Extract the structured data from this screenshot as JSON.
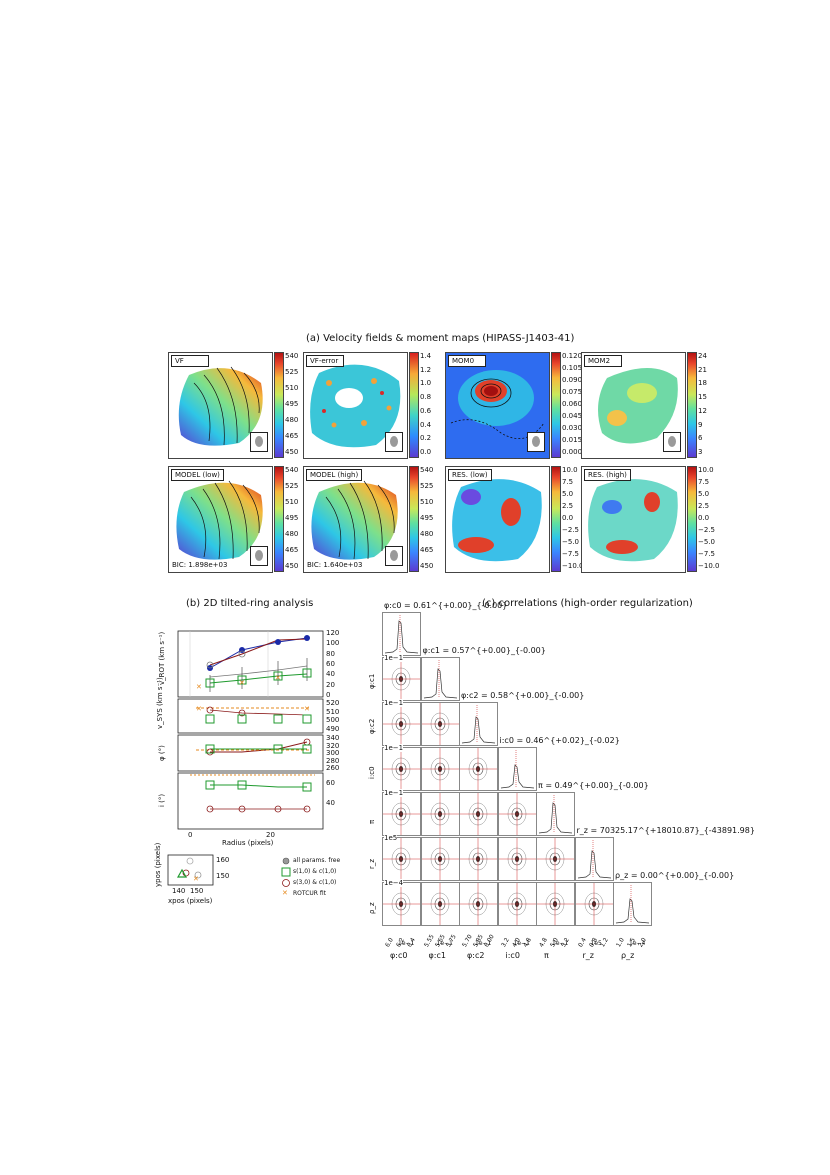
{
  "titles": {
    "a": "(a) Velocity fields & moment maps (HIPASS-J1403-41)",
    "b": "(b) 2D tilted-ring analysis",
    "c": "(c) correlations (high-order regularization)"
  },
  "maps_row1": [
    {
      "label": "VF",
      "ticks": [
        "540",
        "525",
        "510",
        "495",
        "480",
        "465",
        "450"
      ],
      "kind": "jet"
    },
    {
      "label": "VF-error",
      "ticks": [
        "1.4",
        "1.2",
        "1.0",
        "0.8",
        "0.6",
        "0.4",
        "0.2",
        "0.0"
      ],
      "kind": "err"
    },
    {
      "label": "MOM0",
      "ticks": [
        "0.120",
        "0.105",
        "0.090",
        "0.075",
        "0.060",
        "0.045",
        "0.030",
        "0.015",
        "0.000"
      ],
      "kind": "jet"
    },
    {
      "label": "MOM2",
      "ticks": [
        "24",
        "21",
        "18",
        "15",
        "12",
        "9",
        "6",
        "3"
      ],
      "kind": "jet"
    }
  ],
  "maps_row2": [
    {
      "label": "MODEL (low)",
      "bic": "BIC: 1.898e+03",
      "ticks": [
        "540",
        "525",
        "510",
        "495",
        "480",
        "465",
        "450"
      ],
      "kind": "jet"
    },
    {
      "label": "MODEL (high)",
      "bic": "BIC: 1.640e+03",
      "ticks": [
        "540",
        "525",
        "510",
        "495",
        "480",
        "465",
        "450"
      ],
      "kind": "jet"
    },
    {
      "label": "RES. (low)",
      "ticks": [
        "10.0",
        "7.5",
        "5.0",
        "2.5",
        "0.0",
        "−2.5",
        "−5.0",
        "−7.5",
        "−10.0"
      ],
      "kind": "jet"
    },
    {
      "label": "RES. (high)",
      "ticks": [
        "10.0",
        "7.5",
        "5.0",
        "2.5",
        "0.0",
        "−2.5",
        "−5.0",
        "−7.5",
        "−10.0"
      ],
      "kind": "jet"
    }
  ],
  "tilted_ring": {
    "vrot_label": "v_ROT (km s⁻¹)",
    "vrot_ticks": [
      "120",
      "100",
      "80",
      "60",
      "40",
      "20",
      "0"
    ],
    "vsys_label": "v_SYS (km s⁻¹)",
    "vsys_ticks": [
      "520",
      "510",
      "500",
      "490"
    ],
    "pa_label": "φ (°)",
    "pa_ticks": [
      "340",
      "320",
      "300",
      "280",
      "260"
    ],
    "inc_label": "i (°)",
    "inc_ticks": [
      "60",
      "40"
    ],
    "x_ticks": [
      "0",
      "20"
    ],
    "xlabel": "Radius (pixels)",
    "pos_ylabel": "ypos (pixels)",
    "pos_xlabel": "xpos (pixels)",
    "pos_yticks": [
      "160",
      "150"
    ],
    "pos_xticks": [
      "140",
      "150"
    ],
    "legend": [
      "all params. free",
      "s(1,0) & c(1,0)",
      "s(3,0) & c(1,0)",
      "ROTCUR fit"
    ],
    "colors": {
      "free": "#777777",
      "green": "#1f9a2e",
      "maroon": "#8b1a1a",
      "orange": "#e68a1f",
      "blue": "#1a2aa8"
    }
  },
  "corner": {
    "params": [
      "φ:c0",
      "φ:c1",
      "φ:c2",
      "i:c0",
      "π",
      "r_z",
      "ρ_z"
    ],
    "diag_titles": [
      "φ:c0 = 0.61^{+0.00}_{-0.00}",
      "φ:c1 = 0.57^{+0.00}_{-0.00}",
      "φ:c2 = 0.58^{+0.00}_{-0.00}",
      "i:c0 = 0.46^{+0.02}_{-0.02}",
      "π = 0.49^{+0.00}_{-0.00}",
      "r_z = 70325.17^{+18010.87}_{-43891.98}",
      "ρ_z = 0.00^{+0.00}_{-0.00}"
    ],
    "scales": [
      "1e−1",
      "1e−1",
      "1e−1",
      "1e−1",
      "1e−1",
      "1e5",
      "1e−4"
    ],
    "xtick_labels": [
      [
        "6.0",
        "6.2",
        "6.4"
      ],
      [
        "5.55",
        "5.65",
        "5.75"
      ],
      [
        "5.70",
        "5.85",
        "6.00"
      ],
      [
        "3.2",
        "4.0",
        "4.8"
      ],
      [
        "4.8",
        "5.0",
        "5.2"
      ],
      [
        "0.4",
        "0.8",
        "1.2"
      ],
      [
        "1.0",
        "1.5",
        "2.0"
      ]
    ]
  }
}
